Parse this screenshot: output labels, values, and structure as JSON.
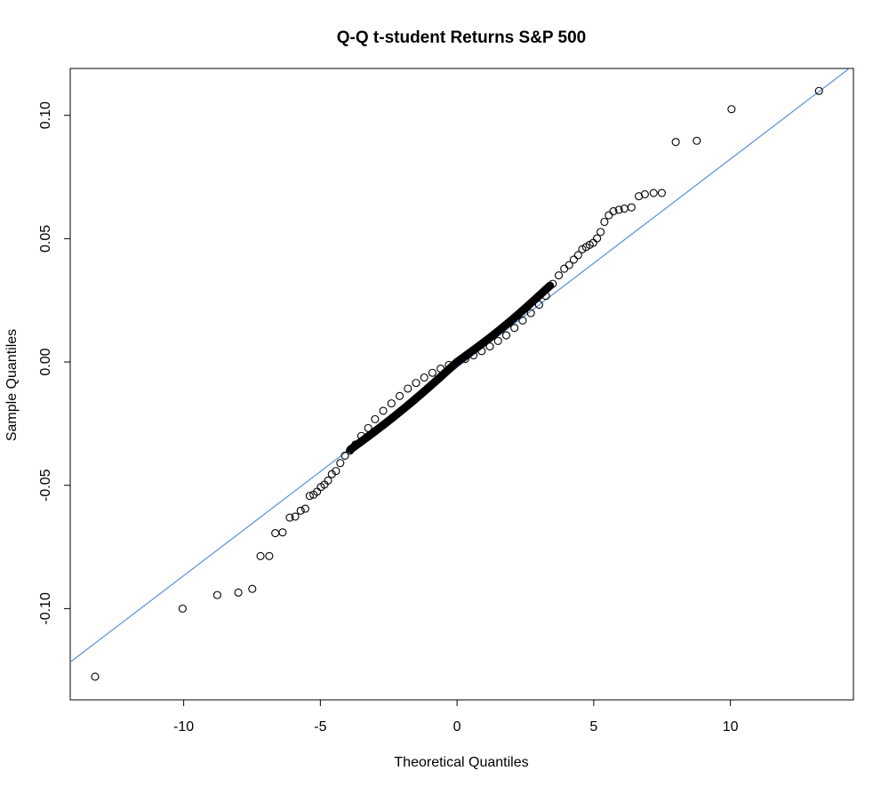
{
  "chart_data": {
    "type": "scatter",
    "title": "Q-Q t-student Returns S&P 500",
    "xlabel": "Theoretical Quantiles",
    "ylabel": "Sample Quantiles",
    "xlim": [
      -14.15,
      14.5
    ],
    "ylim": [
      -0.137,
      0.119
    ],
    "xticks": [
      -10,
      -5,
      0,
      5,
      10
    ],
    "xtick_labels": [
      "-10",
      "-5",
      "0",
      "5",
      "10"
    ],
    "yticks": [
      -0.1,
      -0.05,
      0.0,
      0.05,
      0.1
    ],
    "ytick_labels": [
      "-0.10",
      "-0.05",
      "0.00",
      "0.05",
      "0.10"
    ],
    "grid": false,
    "series": [
      {
        "marker": "open-circle",
        "color": "#000000",
        "x": [
          -13.24,
          -10.04,
          -8.77,
          -8.0,
          -7.49,
          -7.19,
          -6.87,
          -6.65,
          -6.38,
          -6.12,
          -5.92,
          -5.72,
          -5.55,
          -5.39,
          -5.25,
          -5.12,
          -4.98,
          -4.85,
          -4.72,
          -4.58,
          -4.43,
          -4.27,
          -4.1,
          -3.92,
          -3.72,
          -3.5,
          -3.25,
          -3.0,
          -2.7,
          -2.4,
          -2.1,
          -1.8,
          -1.5,
          -1.2,
          -0.9,
          -0.6,
          -0.3,
          0.0,
          0.3,
          0.6,
          0.9,
          1.2,
          1.5,
          1.8,
          2.1,
          2.4,
          2.7,
          3.0,
          3.25,
          3.5,
          3.72,
          3.92,
          4.1,
          4.27,
          4.43,
          4.58,
          4.72,
          4.85,
          4.98,
          5.12,
          5.25,
          5.39,
          5.55,
          5.72,
          5.92,
          6.12,
          6.38,
          6.65,
          6.87,
          7.19,
          7.49,
          8.0,
          8.77,
          10.04,
          13.24
        ],
        "y": [
          -0.1276,
          -0.1,
          -0.0945,
          -0.0935,
          -0.092,
          -0.0787,
          -0.0787,
          -0.0694,
          -0.0691,
          -0.0631,
          -0.0627,
          -0.0603,
          -0.0595,
          -0.0543,
          -0.0538,
          -0.0526,
          -0.0507,
          -0.0497,
          -0.0481,
          -0.0455,
          -0.0442,
          -0.041,
          -0.038,
          -0.036,
          -0.0335,
          -0.03,
          -0.0268,
          -0.0232,
          -0.0198,
          -0.0168,
          -0.0138,
          -0.0108,
          -0.0085,
          -0.0063,
          -0.0044,
          -0.0027,
          -0.0012,
          0.0,
          0.0012,
          0.0027,
          0.0044,
          0.0063,
          0.0085,
          0.0108,
          0.0138,
          0.0168,
          0.0198,
          0.0232,
          0.0268,
          0.0317,
          0.0351,
          0.0378,
          0.0393,
          0.0415,
          0.0433,
          0.0457,
          0.0466,
          0.0475,
          0.0483,
          0.0501,
          0.0527,
          0.0568,
          0.0595,
          0.0611,
          0.0617,
          0.0622,
          0.0627,
          0.0672,
          0.068,
          0.0685,
          0.0685,
          0.0892,
          0.0897,
          0.1025,
          0.1099
        ]
      }
    ],
    "reference_line": {
      "color": "#5b8fdc",
      "x": [
        -14.15,
        14.5
      ],
      "y": [
        -0.1217,
        0.1203
      ]
    }
  }
}
